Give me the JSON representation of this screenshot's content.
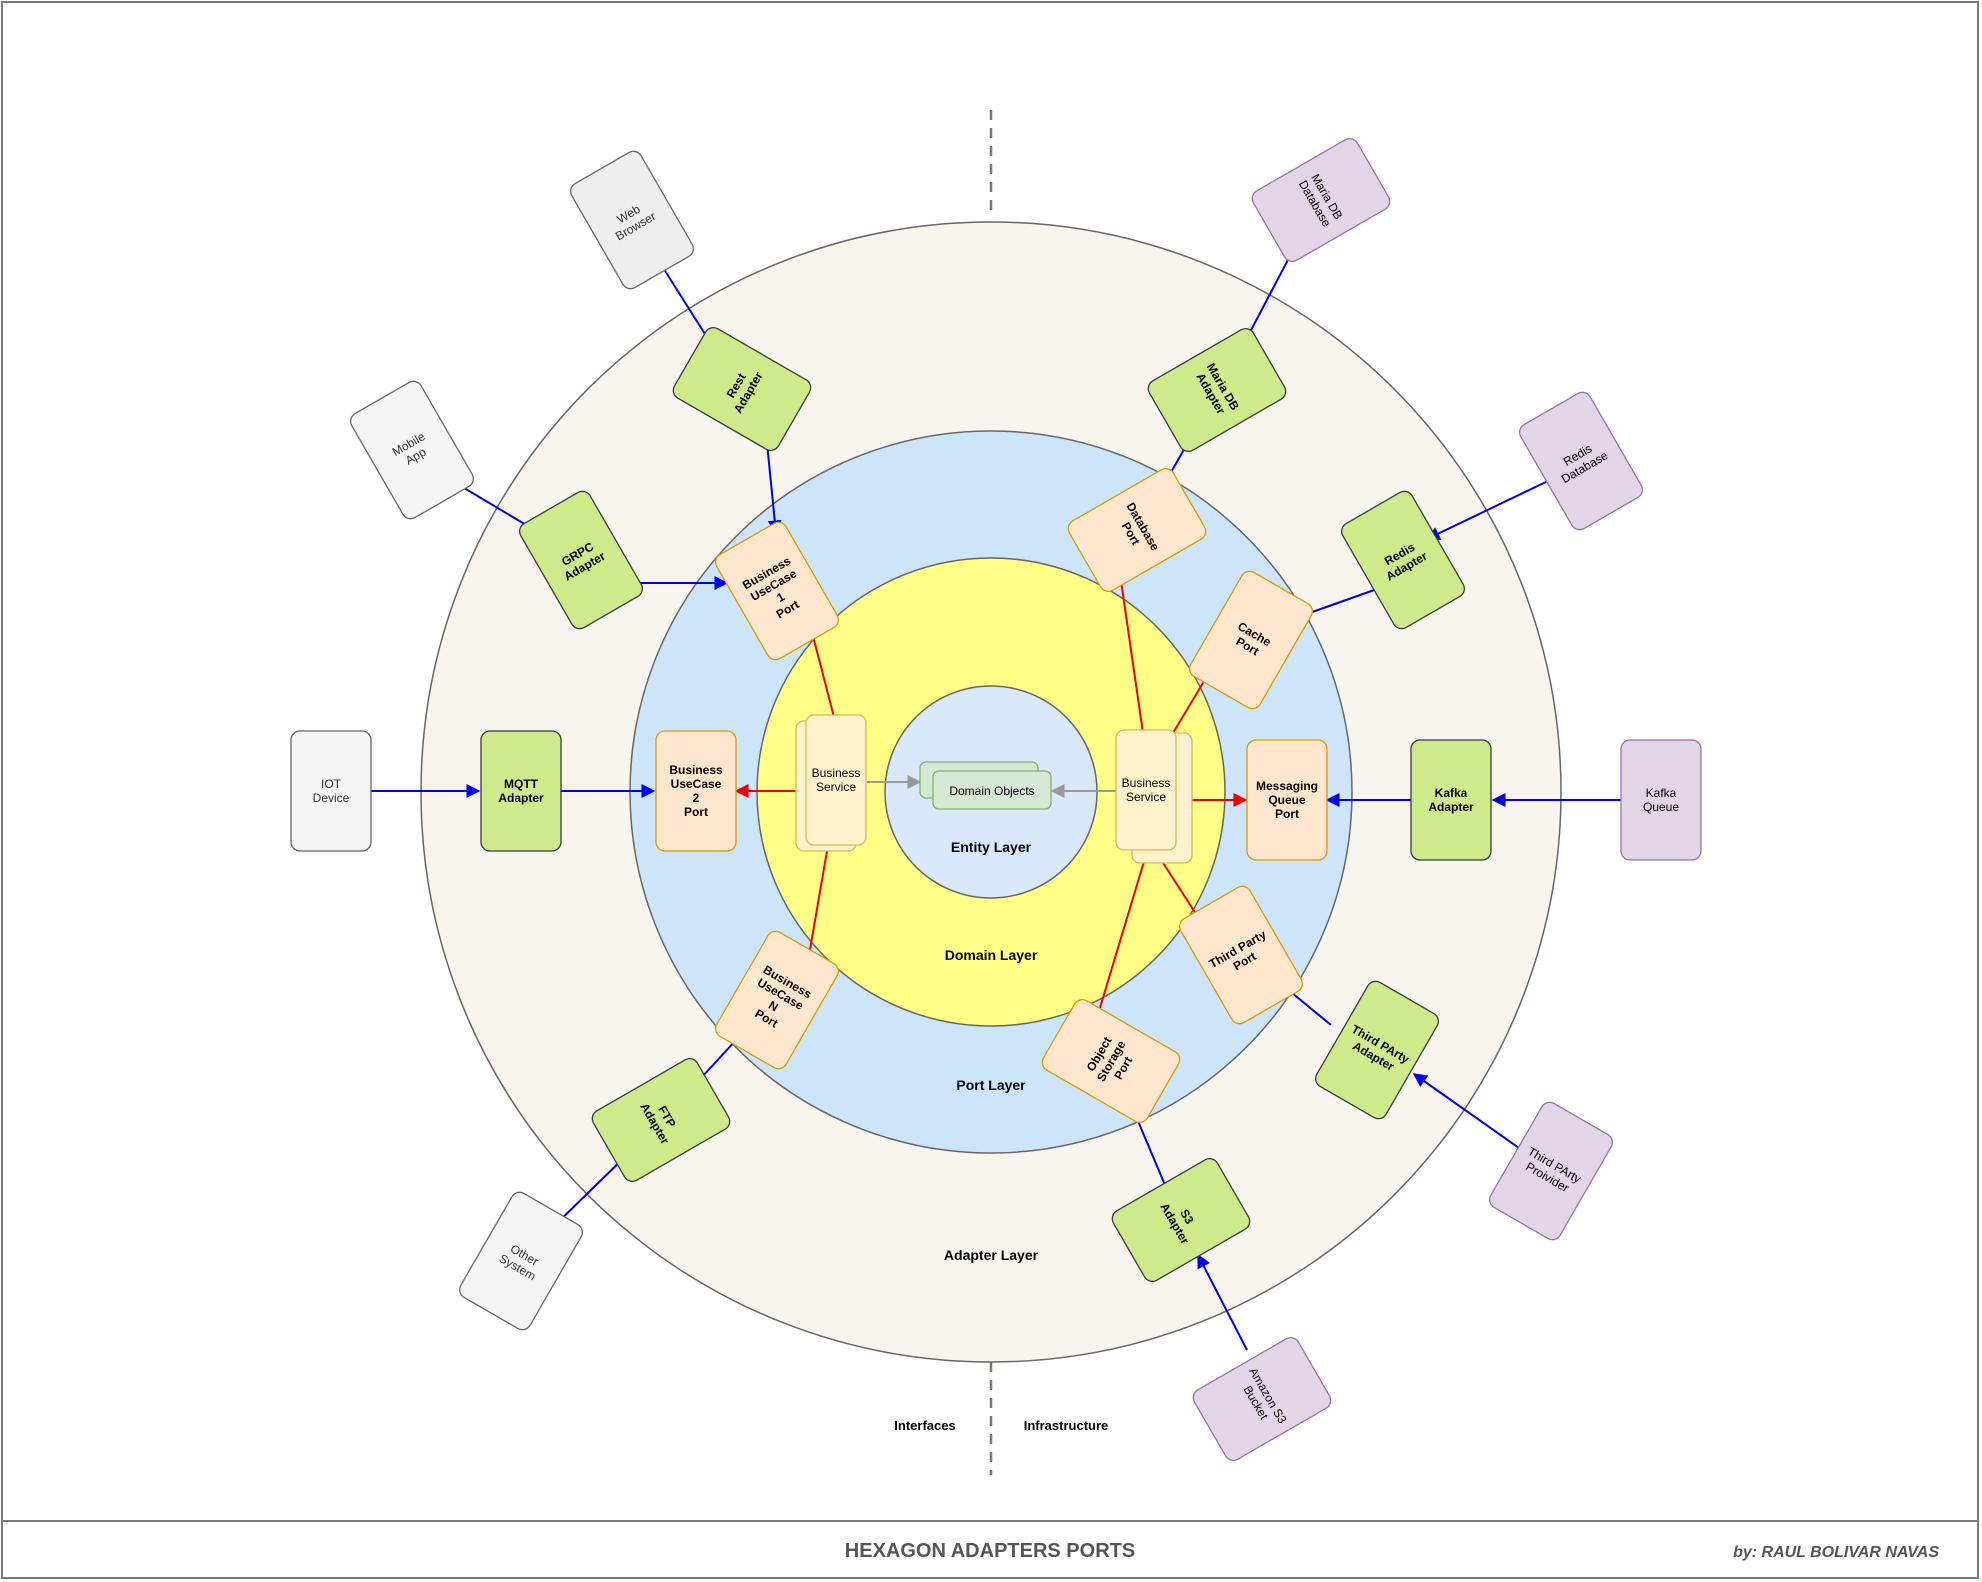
{
  "layers": {
    "entity": "Entity Layer",
    "domain": "Domain Layer",
    "port": "Port Layer",
    "adapter": "Adapter Layer"
  },
  "boundary": {
    "left": "Interfaces",
    "right": "Infrastructure"
  },
  "domain_objects": "Domain Objects",
  "services": {
    "left": [
      "Business",
      "Service"
    ],
    "right": [
      "Business",
      "Service"
    ]
  },
  "ports": {
    "usecase1": [
      "Business",
      "UseCase",
      "1",
      "Port"
    ],
    "usecase2": [
      "Business",
      "UseCase",
      "2",
      "Port"
    ],
    "usecaseN": [
      "Business",
      "UseCase",
      "N",
      "Port"
    ],
    "database": [
      "Database",
      "Port"
    ],
    "cache": [
      "Cache",
      "Port"
    ],
    "messaging": [
      "Messaging",
      "Queue",
      "Port"
    ],
    "third_party": [
      "Third Party",
      "Port"
    ],
    "object_storage": [
      "Object",
      "Storage",
      "Port"
    ]
  },
  "adapters": {
    "rest": [
      "Rest",
      "Adapter"
    ],
    "grpc": [
      "GRPC",
      "Adapter"
    ],
    "mqtt": [
      "MQTT",
      "Adapter"
    ],
    "ftp": [
      "FTP",
      "Adapter"
    ],
    "mariadb": [
      "Maria DB",
      "Adapter"
    ],
    "redis": [
      "Redis",
      "Adapter"
    ],
    "kafka": [
      "Kafka",
      "Adapter"
    ],
    "third_party": [
      "Third PArty",
      "Adapter"
    ],
    "s3": [
      "S3",
      "Adapter"
    ]
  },
  "clients": {
    "web_browser": [
      "Web",
      "Browser"
    ],
    "mobile_app": [
      "Mobile",
      "App"
    ],
    "iot_device": [
      "IOT",
      "Device"
    ],
    "other_system": [
      "Other",
      "System"
    ]
  },
  "infrastructure": {
    "mariadb": [
      "Maria DB",
      "Database"
    ],
    "redis": [
      "Redis",
      "Database"
    ],
    "kafka": [
      "Kafka",
      "Queue"
    ],
    "third_party": [
      "Third PArty",
      "Proivider"
    ],
    "s3": [
      "Amazon S3",
      "Bucket"
    ]
  },
  "footer": {
    "title": "HEXAGON ADAPTERS PORTS",
    "author": "by: RAUL BOLIVAR NAVAS"
  },
  "colors": {
    "adapter_ring": "#f7f5ee",
    "port_ring": "#cce5fb",
    "domain_ring": "#ffff88",
    "entity_core": "#dae8fc",
    "adapter_fill": "#cdeb8b",
    "port_fill": "#ffe6cc",
    "service_fill": "#fff2cc",
    "domain_object_fill": "#d5e8d4",
    "client_fill": "#f5f5f5",
    "infra_fill": "#e1d5e7",
    "inbound_arrow": "#0000ee",
    "outbound_arrow": "#ee0000",
    "entity_arrow": "#999999"
  }
}
